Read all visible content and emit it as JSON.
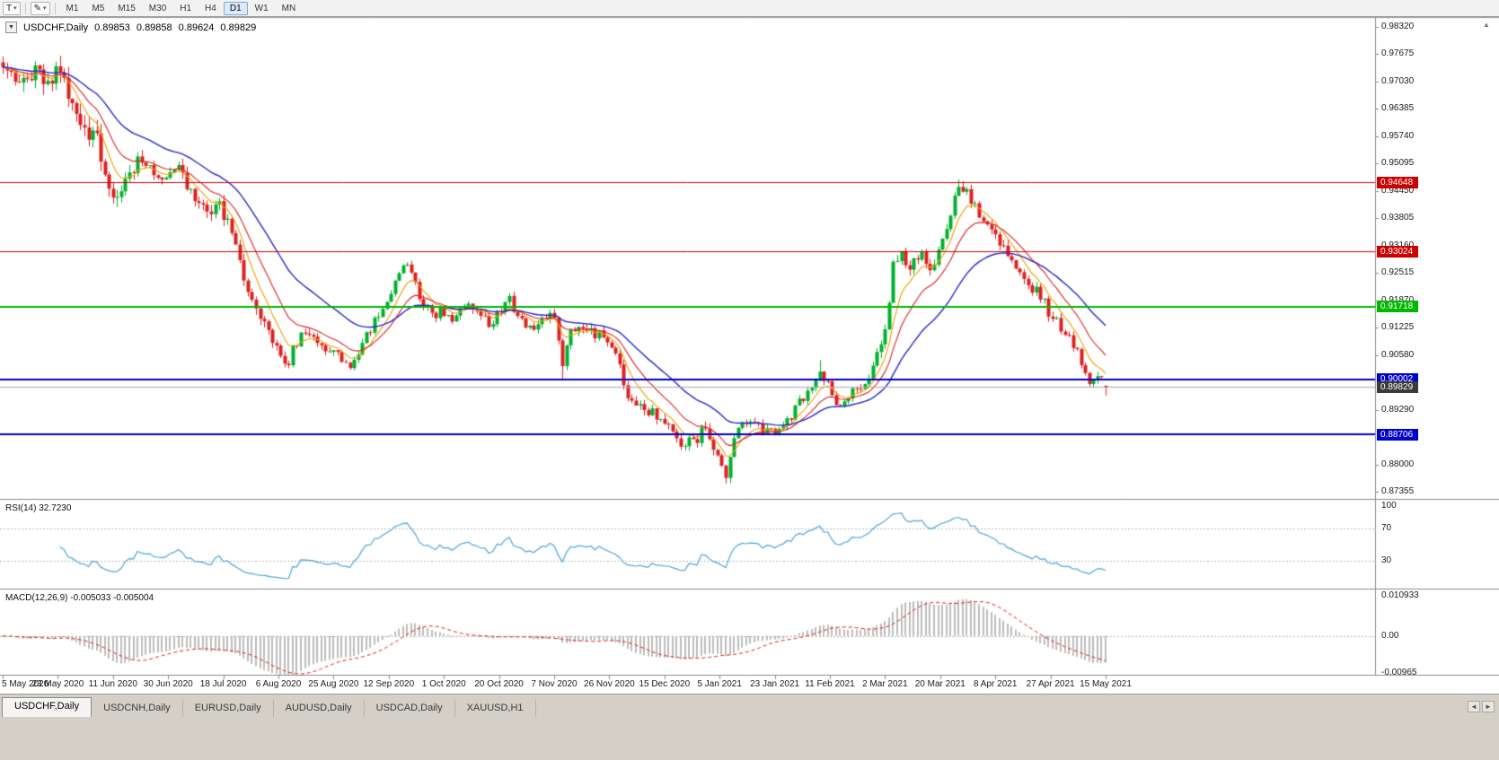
{
  "icons": {
    "dropdown": "▾",
    "collapse": "▼",
    "pen_tool": "✎",
    "scroll_up": "▲",
    "tab_scroll_left": "◄",
    "tab_scroll_right": "►"
  },
  "toolbar": {
    "text_tool": "T",
    "timeframes": [
      "M1",
      "M5",
      "M15",
      "M30",
      "H1",
      "H4",
      "D1",
      "W1",
      "MN"
    ],
    "active_timeframe": "D1"
  },
  "chart": {
    "symbol_label": "USDCHF,Daily",
    "open": "0.89853",
    "high": "0.89858",
    "low": "0.89624",
    "close": "0.89829"
  },
  "price_axis": {
    "labels": [
      "0.98320",
      "0.97675",
      "0.97030",
      "0.96385",
      "0.95740",
      "0.95095",
      "0.94450",
      "0.93805",
      "0.93160",
      "0.92515",
      "0.91870",
      "0.91225",
      "0.90580",
      "0.89290",
      "0.88000",
      "0.87355"
    ],
    "level_badges": [
      {
        "text": "0.94648",
        "color": "#cc0000"
      },
      {
        "text": "0.93024",
        "color": "#cc0000"
      },
      {
        "text": "0.91718",
        "color": "#00b800"
      },
      {
        "text": "0.90002",
        "color": "#0000cc"
      },
      {
        "text": "0.88706",
        "color": "#0000cc"
      }
    ],
    "current_badge": {
      "text": "0.89829",
      "color": "#3a3a3a"
    }
  },
  "rsi_panel": {
    "label": "RSI(14)",
    "value": "32.7230",
    "axis_labels": [
      "100",
      "70",
      "30"
    ]
  },
  "macd_panel": {
    "label": "MACD(12,26,9)",
    "main_value": "-0.005033",
    "signal_value": "-0.005004",
    "axis_labels": [
      "0.010933",
      "0.00",
      "-0.00965"
    ]
  },
  "tabs": [
    {
      "label": "USDCHF,Daily",
      "active": true
    },
    {
      "label": "USDCNH,Daily",
      "active": false
    },
    {
      "label": "EURUSD,Daily",
      "active": false
    },
    {
      "label": "AUDUSD,Daily",
      "active": false
    },
    {
      "label": "USDCAD,Daily",
      "active": false
    },
    {
      "label": "XAUUSD,H1",
      "active": false
    }
  ],
  "chart_data": {
    "type": "candlestick",
    "symbol": "USDCHF",
    "timeframe": "Daily",
    "num_days": 271,
    "ylim": [
      0.87355,
      0.9832
    ],
    "y_tick_step": 0.00645,
    "ohlc_current": {
      "open": 0.89853,
      "high": 0.89858,
      "low": 0.89624,
      "close": 0.89829
    },
    "horizontal_lines": [
      {
        "price": 0.94648,
        "color": "#cc0000",
        "width": 1
      },
      {
        "price": 0.93024,
        "color": "#cc0000",
        "width": 1
      },
      {
        "price": 0.91718,
        "color": "#00b800",
        "width": 2
      },
      {
        "price": 0.90002,
        "color": "#0000cc",
        "width": 2
      },
      {
        "price": 0.88706,
        "color": "#0000cc",
        "width": 2
      }
    ],
    "current_price_line": {
      "price": 0.89829,
      "color": "#aaaaaa"
    },
    "candle_colors": {
      "up": "#00b22d",
      "down": "#e02020"
    },
    "moving_averages": [
      {
        "period": 7,
        "color": "#f0a000"
      },
      {
        "period": 14,
        "color": "#e02020"
      },
      {
        "period": 30,
        "color": "#2828cc"
      }
    ],
    "price_anchors": [
      [
        0,
        0.971
      ],
      [
        2,
        0.9755
      ],
      [
        4,
        0.969
      ],
      [
        6,
        0.9725
      ],
      [
        9,
        0.9745
      ],
      [
        11,
        0.97
      ],
      [
        13,
        0.972
      ],
      [
        16,
        0.9685
      ],
      [
        18,
        0.965
      ],
      [
        20,
        0.96
      ],
      [
        23,
        0.9565
      ],
      [
        25,
        0.95
      ],
      [
        27,
        0.945
      ],
      [
        29,
        0.942
      ],
      [
        31,
        0.949
      ],
      [
        34,
        0.9525
      ],
      [
        37,
        0.9495
      ],
      [
        40,
        0.947
      ],
      [
        43,
        0.9495
      ],
      [
        46,
        0.9445
      ],
      [
        49,
        0.94
      ],
      [
        52,
        0.9412
      ],
      [
        54,
        0.9395
      ],
      [
        56,
        0.934
      ],
      [
        58,
        0.927
      ],
      [
        60,
        0.921
      ],
      [
        62,
        0.918
      ],
      [
        64,
        0.913
      ],
      [
        66,
        0.909
      ],
      [
        68,
        0.906
      ],
      [
        70,
        0.9045
      ],
      [
        72,
        0.909
      ],
      [
        75,
        0.9112
      ],
      [
        78,
        0.9085
      ],
      [
        81,
        0.907
      ],
      [
        83,
        0.9045
      ],
      [
        85,
        0.903
      ],
      [
        88,
        0.908
      ],
      [
        91,
        0.914
      ],
      [
        94,
        0.919
      ],
      [
        97,
        0.9255
      ],
      [
        99,
        0.9278
      ],
      [
        101,
        0.923
      ],
      [
        103,
        0.917
      ],
      [
        105,
        0.915
      ],
      [
        108,
        0.9162
      ],
      [
        110,
        0.913
      ],
      [
        113,
        0.918
      ],
      [
        116,
        0.915
      ],
      [
        119,
        0.9132
      ],
      [
        121,
        0.915
      ],
      [
        124,
        0.9186
      ],
      [
        127,
        0.914
      ],
      [
        130,
        0.9115
      ],
      [
        132,
        0.915
      ],
      [
        135,
        0.9155
      ],
      [
        137,
        0.904
      ],
      [
        139,
        0.911
      ],
      [
        142,
        0.9125
      ],
      [
        145,
        0.911
      ],
      [
        148,
        0.909
      ],
      [
        151,
        0.903
      ],
      [
        153,
        0.897
      ],
      [
        156,
        0.894
      ],
      [
        159,
        0.8925
      ],
      [
        162,
        0.89
      ],
      [
        164,
        0.887
      ],
      [
        167,
        0.8845
      ],
      [
        170,
        0.8865
      ],
      [
        172,
        0.8895
      ],
      [
        174,
        0.885
      ],
      [
        176,
        0.879
      ],
      [
        177,
        0.8772
      ],
      [
        179,
        0.886
      ],
      [
        182,
        0.89
      ],
      [
        185,
        0.8885
      ],
      [
        189,
        0.8868
      ],
      [
        192,
        0.89
      ],
      [
        195,
        0.8945
      ],
      [
        198,
        0.8985
      ],
      [
        200,
        0.902
      ],
      [
        202,
        0.899
      ],
      [
        204,
        0.8932
      ],
      [
        207,
        0.896
      ],
      [
        210,
        0.8985
      ],
      [
        213,
        0.903
      ],
      [
        216,
        0.911
      ],
      [
        218,
        0.926
      ],
      [
        220,
        0.93
      ],
      [
        222,
        0.9265
      ],
      [
        225,
        0.9292
      ],
      [
        227,
        0.9268
      ],
      [
        229,
        0.9305
      ],
      [
        231,
        0.9352
      ],
      [
        233,
        0.942
      ],
      [
        234,
        0.9452
      ],
      [
        236,
        0.945
      ],
      [
        238,
        0.9408
      ],
      [
        240,
        0.9375
      ],
      [
        243,
        0.9338
      ],
      [
        246,
        0.9286
      ],
      [
        249,
        0.9248
      ],
      [
        252,
        0.9218
      ],
      [
        254,
        0.9195
      ],
      [
        256,
        0.916
      ],
      [
        259,
        0.9125
      ],
      [
        262,
        0.9085
      ],
      [
        264,
        0.9035
      ],
      [
        266,
        0.899
      ],
      [
        268,
        0.9008
      ],
      [
        270,
        0.8983
      ]
    ],
    "key_extremes": [
      {
        "i": 234,
        "high": 0.9472
      },
      {
        "i": 177,
        "low": 0.8758
      },
      {
        "i": 137,
        "low": 0.8999
      },
      {
        "i": 200,
        "high": 0.9046
      }
    ],
    "volatility_profile": [
      [
        0,
        0.003
      ],
      [
        28,
        0.0028
      ],
      [
        34,
        0.0017
      ],
      [
        55,
        0.0019
      ],
      [
        62,
        0.0017
      ],
      [
        90,
        0.0012
      ],
      [
        130,
        0.0012
      ],
      [
        150,
        0.0014
      ],
      [
        175,
        0.0016
      ],
      [
        185,
        0.0012
      ],
      [
        214,
        0.0013
      ],
      [
        217,
        0.0022
      ],
      [
        222,
        0.0016
      ],
      [
        232,
        0.0015
      ],
      [
        245,
        0.0016
      ],
      [
        270,
        0.0012
      ]
    ],
    "rsi": {
      "period": 14,
      "current": 32.723,
      "levels": [
        70,
        30
      ],
      "range": [
        0,
        100
      ],
      "color": "#4da6e0"
    },
    "macd": {
      "fast": 12,
      "slow": 26,
      "signal_period": 9,
      "main": -0.005033,
      "signal": -0.005004,
      "range": [
        -0.00965,
        0.010933
      ],
      "histogram_color": "#bdbdbd",
      "signal_color": "#e02020"
    },
    "x_labels": [
      "5 May 2020",
      "23 May 2020",
      "11 Jun 2020",
      "30 Jun 2020",
      "18 Jul 2020",
      "6 Aug 2020",
      "25 Aug 2020",
      "12 Sep 2020",
      "1 Oct 2020",
      "20 Oct 2020",
      "7 Nov 2020",
      "26 Nov 2020",
      "15 Dec 2020",
      "5 Jan 2021",
      "23 Jan 2021",
      "11 Feb 2021",
      "2 Mar 2021",
      "20 Mar 2021",
      "8 Apr 2021",
      "27 Apr 2021",
      "15 May 2021"
    ]
  }
}
